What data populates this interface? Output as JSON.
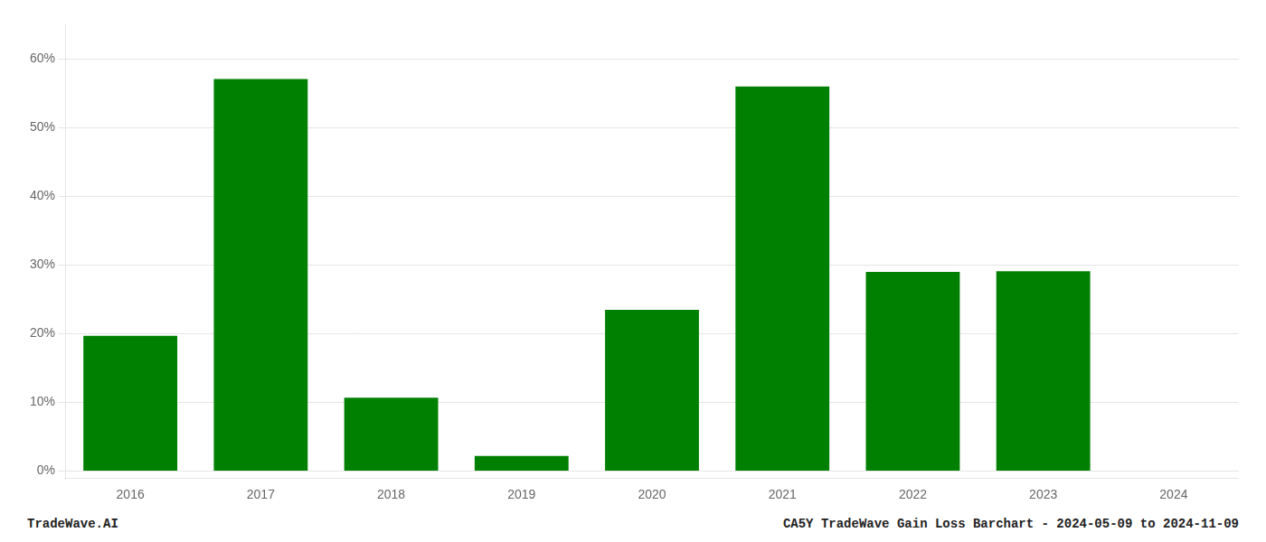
{
  "chart_data": {
    "type": "bar",
    "categories": [
      "2016",
      "2017",
      "2018",
      "2019",
      "2020",
      "2021",
      "2022",
      "2023",
      "2024"
    ],
    "values": [
      0.197,
      0.571,
      0.107,
      0.022,
      0.235,
      0.56,
      0.29,
      0.291,
      0.0
    ],
    "color": "#008000",
    "ylim": [
      -0.01,
      0.65
    ],
    "yticks": [
      {
        "value": 0.0,
        "label": "0%"
      },
      {
        "value": 0.1,
        "label": "10%"
      },
      {
        "value": 0.2,
        "label": "20%"
      },
      {
        "value": 0.3,
        "label": "30%"
      },
      {
        "value": 0.4,
        "label": "40%"
      },
      {
        "value": 0.5,
        "label": "50%"
      },
      {
        "value": 0.6,
        "label": "60%"
      }
    ],
    "grid": true,
    "annotations": [
      "TradeWave.AI",
      "CA5Y TradeWave Gain Loss Barchart - 2024-05-09 to 2024-11-09"
    ]
  }
}
